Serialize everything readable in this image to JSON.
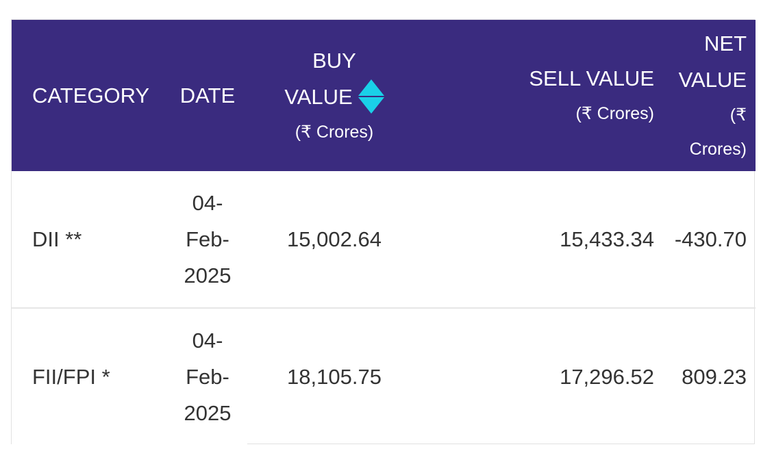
{
  "table": {
    "headers": {
      "category": "CATEGORY",
      "date": "DATE",
      "buy_line1": "BUY",
      "buy_line2": "VALUE",
      "buy_unit": "(₹ Crores)",
      "sell": "SELL VALUE",
      "sell_unit": "(₹ Crores)",
      "net_line1": "NET",
      "net_line2": "VALUE",
      "net_unit_line1": "(₹",
      "net_unit_line2": "Crores)"
    },
    "sort_icon": "sort-up-down-icon",
    "colors": {
      "header_bg": "#3a2b7f",
      "header_text": "#ffffff",
      "sort_icon": "#1ad0e8"
    },
    "rows": [
      {
        "category": "DII **",
        "date_lines": [
          "04-",
          "Feb-",
          "2025"
        ],
        "buy": "15,002.64",
        "sell": "15,433.34",
        "net": "-430.70"
      },
      {
        "category": "FII/FPI *",
        "date_lines": [
          "04-",
          "Feb-",
          "2025"
        ],
        "buy": "18,105.75",
        "sell": "17,296.52",
        "net": "809.23"
      }
    ]
  }
}
